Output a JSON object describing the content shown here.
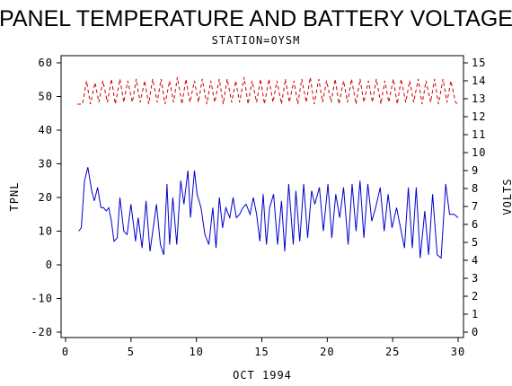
{
  "chart_data": {
    "type": "line",
    "title": "PANEL TEMPERATURE AND BATTERY VOLTAGE",
    "subtitle": "STATION=OYSM",
    "xlabel": "OCT 1994",
    "ylabel_left": "TPNL",
    "ylabel_right": "VOLTS",
    "xlim": [
      0,
      30
    ],
    "ylim_left": [
      -20,
      60
    ],
    "ylim_right": [
      0,
      15
    ],
    "x_ticks": [
      0,
      5,
      10,
      15,
      20,
      25,
      30
    ],
    "y_ticks_left": [
      -20,
      -10,
      0,
      10,
      20,
      30,
      40,
      50,
      60
    ],
    "y_ticks_right": [
      0,
      1,
      2,
      3,
      4,
      5,
      6,
      7,
      8,
      9,
      10,
      11,
      12,
      13,
      14,
      15
    ],
    "grid": false,
    "series": [
      {
        "axis": "left",
        "color": "#0000cc",
        "style": "solid",
        "x": [
          1.0,
          1.2,
          1.45,
          1.7,
          2.0,
          2.2,
          2.45,
          2.7,
          2.9,
          3.1,
          3.3,
          3.5,
          3.7,
          3.95,
          4.15,
          4.45,
          4.7,
          5.0,
          5.35,
          5.55,
          5.85,
          6.15,
          6.45,
          6.7,
          6.95,
          7.25,
          7.5,
          7.75,
          7.95,
          8.2,
          8.5,
          8.8,
          9.05,
          9.35,
          9.55,
          9.85,
          10.05,
          10.35,
          10.65,
          10.95,
          11.25,
          11.5,
          11.75,
          12.0,
          12.25,
          12.55,
          12.8,
          13.05,
          13.3,
          13.55,
          13.8,
          14.1,
          14.35,
          14.6,
          14.85,
          15.1,
          15.35,
          15.6,
          15.9,
          16.2,
          16.5,
          16.75,
          17.05,
          17.4,
          17.6,
          17.9,
          18.2,
          18.5,
          18.8,
          19.05,
          19.4,
          19.7,
          20.05,
          20.35,
          20.65,
          20.95,
          21.25,
          21.6,
          21.9,
          22.2,
          22.5,
          22.8,
          23.1,
          23.4,
          23.7,
          24.05,
          24.35,
          24.65,
          24.95,
          25.3,
          25.6,
          25.9,
          26.2,
          26.5,
          26.8,
          27.1,
          27.45,
          27.75,
          28.05,
          28.4,
          28.7,
          29.05,
          29.35,
          29.7,
          30.0
        ],
        "y": [
          10,
          11,
          25,
          29,
          22,
          19,
          23,
          17,
          17,
          16,
          17,
          13,
          7,
          8,
          20,
          10,
          9,
          18,
          7,
          14,
          5,
          19,
          4,
          11,
          18,
          6,
          3,
          24,
          6,
          20,
          6,
          25,
          18,
          28,
          14,
          28,
          21,
          17,
          9,
          6,
          17,
          5,
          20,
          11,
          17,
          14,
          20,
          14,
          15,
          17,
          18,
          15,
          20,
          15,
          7,
          21,
          6,
          17,
          21,
          6,
          19,
          4,
          24,
          6,
          22,
          7,
          24,
          8,
          22,
          18,
          23,
          10,
          24,
          8,
          21,
          14,
          23,
          6,
          24,
          10,
          25,
          8,
          24,
          13,
          17,
          23,
          10,
          21,
          11,
          17,
          11,
          5,
          23,
          5,
          23,
          2,
          16,
          3,
          21,
          3,
          2,
          24,
          15,
          15,
          14
        ],
        "name": ""
      },
      {
        "axis": "right",
        "color": "#cc0000",
        "style": "dashed",
        "x": [
          0.9,
          1.3,
          1.6,
          1.9,
          2.25,
          2.55,
          2.85,
          3.2,
          3.5,
          3.8,
          4.15,
          4.45,
          4.75,
          5.1,
          5.4,
          5.7,
          6.05,
          6.35,
          6.65,
          7.0,
          7.3,
          7.6,
          7.95,
          8.25,
          8.55,
          8.9,
          9.2,
          9.5,
          9.85,
          10.15,
          10.45,
          10.8,
          11.1,
          11.4,
          11.75,
          12.05,
          12.35,
          12.7,
          13.0,
          13.3,
          13.65,
          13.95,
          14.25,
          14.6,
          14.9,
          15.2,
          15.55,
          15.85,
          16.15,
          16.5,
          16.8,
          17.1,
          17.45,
          17.75,
          18.05,
          18.4,
          18.7,
          19.0,
          19.35,
          19.65,
          19.95,
          20.3,
          20.6,
          20.9,
          21.25,
          21.55,
          21.85,
          22.2,
          22.5,
          22.8,
          23.15,
          23.45,
          23.75,
          24.1,
          24.4,
          24.7,
          25.05,
          25.35,
          25.65,
          26.0,
          26.3,
          26.6,
          26.95,
          27.25,
          27.55,
          27.9,
          28.2,
          28.5,
          28.85,
          29.15,
          29.45,
          29.8,
          30.0
        ],
        "y": [
          12.7,
          12.7,
          14.0,
          12.7,
          13.9,
          12.8,
          14.0,
          12.8,
          14.1,
          12.7,
          14.1,
          12.8,
          14.0,
          12.8,
          14.1,
          12.8,
          14.0,
          12.7,
          14.1,
          12.8,
          14.1,
          12.7,
          14.0,
          12.8,
          14.2,
          12.7,
          14.1,
          12.8,
          14.0,
          12.8,
          14.1,
          12.7,
          14.0,
          12.8,
          14.1,
          12.7,
          14.1,
          12.8,
          14.0,
          12.8,
          14.2,
          12.7,
          14.0,
          12.8,
          14.1,
          12.7,
          14.1,
          12.8,
          14.0,
          12.7,
          14.1,
          12.8,
          14.0,
          12.7,
          14.1,
          12.8,
          14.2,
          12.7,
          14.1,
          12.8,
          14.0,
          12.8,
          14.1,
          12.7,
          14.0,
          12.8,
          14.1,
          12.7,
          14.1,
          12.8,
          14.0,
          12.8,
          14.1,
          12.7,
          14.0,
          12.8,
          14.1,
          12.7,
          14.1,
          12.8,
          14.0,
          12.8,
          14.1,
          12.7,
          14.0,
          12.8,
          14.1,
          12.7,
          14.1,
          12.8,
          14.0,
          12.8,
          12.7
        ],
        "name": ""
      }
    ]
  }
}
